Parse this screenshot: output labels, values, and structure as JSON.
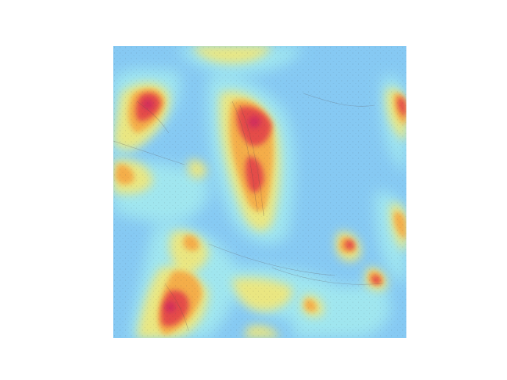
{
  "image": {
    "kind": "microscopy-heatmap-overlay",
    "colormap": "jet",
    "overlay_colors": {
      "low": "#8ccdf5",
      "mid_low": "#9ee6f0",
      "mid": "#f3e97a",
      "mid_high": "#f6b24a",
      "high": "#e64a4a",
      "peak": "#d2285a"
    }
  }
}
